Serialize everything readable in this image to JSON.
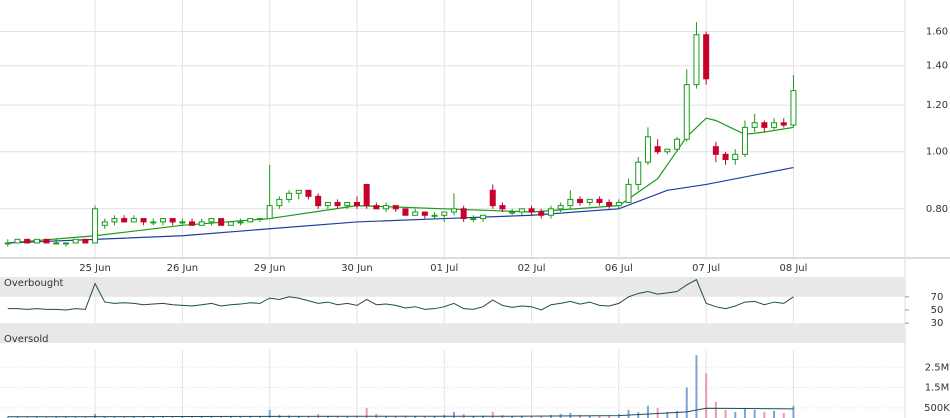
{
  "chart_data": [
    {
      "type": "candlestick",
      "log_scale": true,
      "grid": true,
      "up_color": "#1a9a1a",
      "down_color": "#c8002d",
      "open": [
        0.7,
        0.7,
        0.71,
        0.7,
        0.71,
        0.7,
        0.7,
        0.7,
        0.71,
        0.7,
        0.75,
        0.76,
        0.77,
        0.76,
        0.77,
        0.76,
        0.76,
        0.77,
        0.76,
        0.76,
        0.75,
        0.76,
        0.77,
        0.75,
        0.76,
        0.76,
        0.77,
        0.77,
        0.81,
        0.83,
        0.85,
        0.86,
        0.84,
        0.81,
        0.82,
        0.81,
        0.82,
        0.88,
        0.81,
        0.8,
        0.81,
        0.8,
        0.78,
        0.79,
        0.78,
        0.78,
        0.79,
        0.8,
        0.77,
        0.77,
        0.86,
        0.81,
        0.79,
        0.79,
        0.8,
        0.79,
        0.78,
        0.8,
        0.81,
        0.83,
        0.82,
        0.83,
        0.82,
        0.81,
        0.82,
        0.88,
        0.96,
        1.02,
        1.0,
        1.01,
        1.05,
        1.3,
        1.58,
        1.02,
        0.99,
        0.97,
        0.99,
        1.1,
        1.12,
        1.1,
        1.12,
        1.11
      ],
      "high": [
        0.71,
        0.71,
        0.71,
        0.71,
        0.71,
        0.71,
        0.7,
        0.71,
        0.71,
        0.81,
        0.77,
        0.78,
        0.78,
        0.78,
        0.77,
        0.77,
        0.77,
        0.77,
        0.77,
        0.77,
        0.77,
        0.77,
        0.77,
        0.76,
        0.77,
        0.77,
        0.77,
        0.95,
        0.84,
        0.86,
        0.86,
        0.86,
        0.85,
        0.82,
        0.83,
        0.82,
        0.84,
        0.88,
        0.82,
        0.82,
        0.81,
        0.8,
        0.8,
        0.79,
        0.79,
        0.79,
        0.85,
        0.81,
        0.78,
        0.78,
        0.88,
        0.82,
        0.8,
        0.8,
        0.81,
        0.8,
        0.81,
        0.82,
        0.86,
        0.84,
        0.83,
        0.84,
        0.83,
        0.83,
        0.9,
        0.98,
        1.1,
        1.05,
        1.01,
        1.06,
        1.38,
        1.66,
        1.6,
        1.04,
        1.0,
        1.01,
        1.13,
        1.16,
        1.13,
        1.14,
        1.14,
        1.35
      ],
      "low": [
        0.69,
        0.7,
        0.7,
        0.7,
        0.7,
        0.7,
        0.69,
        0.7,
        0.7,
        0.7,
        0.74,
        0.75,
        0.76,
        0.76,
        0.75,
        0.75,
        0.75,
        0.75,
        0.75,
        0.75,
        0.75,
        0.75,
        0.75,
        0.75,
        0.75,
        0.76,
        0.76,
        0.77,
        0.8,
        0.82,
        0.83,
        0.83,
        0.8,
        0.8,
        0.8,
        0.8,
        0.8,
        0.8,
        0.8,
        0.79,
        0.79,
        0.78,
        0.78,
        0.77,
        0.77,
        0.76,
        0.78,
        0.76,
        0.76,
        0.76,
        0.8,
        0.79,
        0.78,
        0.78,
        0.78,
        0.77,
        0.77,
        0.79,
        0.8,
        0.81,
        0.81,
        0.81,
        0.8,
        0.8,
        0.82,
        0.86,
        0.95,
        0.99,
        0.99,
        1.0,
        1.04,
        1.28,
        1.3,
        0.96,
        0.95,
        0.95,
        0.98,
        1.08,
        1.08,
        1.09,
        1.1,
        1.1
      ],
      "close": [
        0.7,
        0.71,
        0.7,
        0.71,
        0.7,
        0.7,
        0.7,
        0.71,
        0.7,
        0.8,
        0.76,
        0.77,
        0.76,
        0.77,
        0.76,
        0.76,
        0.77,
        0.76,
        0.76,
        0.75,
        0.76,
        0.77,
        0.75,
        0.76,
        0.76,
        0.77,
        0.77,
        0.81,
        0.83,
        0.85,
        0.86,
        0.84,
        0.81,
        0.82,
        0.81,
        0.82,
        0.81,
        0.81,
        0.8,
        0.81,
        0.8,
        0.78,
        0.79,
        0.78,
        0.78,
        0.79,
        0.8,
        0.77,
        0.77,
        0.78,
        0.81,
        0.8,
        0.79,
        0.8,
        0.79,
        0.78,
        0.8,
        0.81,
        0.83,
        0.82,
        0.83,
        0.82,
        0.81,
        0.82,
        0.88,
        0.96,
        1.06,
        1.0,
        1.01,
        1.05,
        1.3,
        1.58,
        1.33,
        0.99,
        0.97,
        0.99,
        1.1,
        1.12,
        1.1,
        1.12,
        1.11,
        1.27
      ],
      "lines": [
        {
          "color": "#1a9a1a",
          "x": [
            0,
            9,
            18,
            27,
            36,
            45,
            54,
            63,
            67,
            70,
            72,
            73,
            76,
            78,
            81
          ],
          "values": [
            0.7,
            0.72,
            0.75,
            0.77,
            0.81,
            0.8,
            0.79,
            0.81,
            0.9,
            1.06,
            1.14,
            1.13,
            1.07,
            1.08,
            1.1
          ]
        },
        {
          "color": "#1f3f9f",
          "x": [
            0,
            18,
            27,
            36,
            45,
            54,
            63,
            68,
            72,
            81
          ],
          "values": [
            0.7,
            0.72,
            0.74,
            0.76,
            0.77,
            0.78,
            0.8,
            0.86,
            0.88,
            0.94
          ]
        }
      ],
      "xlim": [
        -0.8,
        92.5
      ],
      "ylim": [
        0.66,
        1.81
      ],
      "xticks": [
        {
          "value": 9,
          "label": "25 Jun"
        },
        {
          "value": 18,
          "label": "26 Jun"
        },
        {
          "value": 27,
          "label": "29 Jun"
        },
        {
          "value": 36,
          "label": "30 Jun"
        },
        {
          "value": 45,
          "label": "01 Jul"
        },
        {
          "value": 54,
          "label": "02 Jul"
        },
        {
          "value": 63,
          "label": "06 Jul"
        },
        {
          "value": 72,
          "label": "07 Jul"
        },
        {
          "value": 81,
          "label": "08 Jul"
        }
      ],
      "yticks": [
        {
          "value": 0.8,
          "label": "0.80"
        },
        {
          "value": 1.0,
          "label": "1.00"
        },
        {
          "value": 1.2,
          "label": "1.20"
        },
        {
          "value": 1.4,
          "label": "1.40"
        },
        {
          "value": 1.6,
          "label": "1.60"
        }
      ]
    },
    {
      "type": "line",
      "color": "#1f4f3f",
      "band_high_label": "Overbought",
      "band_low_label": "Oversold",
      "band_high": 70,
      "band_low": 30,
      "values": [
        52,
        52,
        51,
        52,
        51,
        51,
        50,
        52,
        51,
        90,
        62,
        60,
        61,
        60,
        58,
        59,
        60,
        58,
        57,
        56,
        58,
        60,
        56,
        58,
        59,
        61,
        60,
        68,
        66,
        70,
        68,
        64,
        60,
        62,
        58,
        60,
        57,
        66,
        58,
        59,
        57,
        53,
        55,
        51,
        52,
        55,
        60,
        52,
        51,
        55,
        65,
        57,
        54,
        56,
        55,
        50,
        58,
        60,
        63,
        59,
        62,
        57,
        56,
        60,
        70,
        75,
        78,
        74,
        76,
        78,
        88,
        96,
        60,
        55,
        52,
        56,
        62,
        63,
        58,
        62,
        60,
        70
      ],
      "xlim": [
        -0.8,
        92.5
      ],
      "ylim": [
        0,
        100
      ],
      "yticks": [
        30,
        50,
        70
      ]
    },
    {
      "type": "bar",
      "up_color": "#7aa6d6",
      "down_color": "#e89aae",
      "ma_color": "#1f4f5f",
      "values": [
        60000,
        50000,
        40000,
        50000,
        40000,
        60000,
        50000,
        40000,
        60000,
        200000,
        80000,
        60000,
        50000,
        70000,
        60000,
        50000,
        60000,
        50000,
        60000,
        50000,
        60000,
        50000,
        70000,
        60000,
        50000,
        60000,
        70000,
        400000,
        150000,
        120000,
        100000,
        90000,
        200000,
        80000,
        90000,
        100000,
        120000,
        500000,
        200000,
        100000,
        90000,
        120000,
        80000,
        100000,
        90000,
        150000,
        300000,
        200000,
        100000,
        120000,
        300000,
        150000,
        100000,
        120000,
        100000,
        120000,
        150000,
        200000,
        250000,
        150000,
        120000,
        100000,
        150000,
        200000,
        400000,
        300000,
        600000,
        500000,
        300000,
        350000,
        1500000,
        3100000,
        2200000,
        800000,
        400000,
        300000,
        500000,
        400000,
        300000,
        350000,
        250000,
        600000
      ],
      "ma_x": [
        0,
        27,
        54,
        63,
        70,
        72,
        76,
        81
      ],
      "ma_values": [
        60000,
        80000,
        90000,
        120000,
        300000,
        480000,
        470000,
        450000
      ],
      "xlim": [
        -0.8,
        92.5
      ],
      "ylim": [
        0,
        3350000
      ],
      "yticks": [
        {
          "value": 500000,
          "label": "500K"
        },
        {
          "value": 1500000,
          "label": "1.5M"
        },
        {
          "value": 2500000,
          "label": "2.5M"
        }
      ]
    }
  ]
}
